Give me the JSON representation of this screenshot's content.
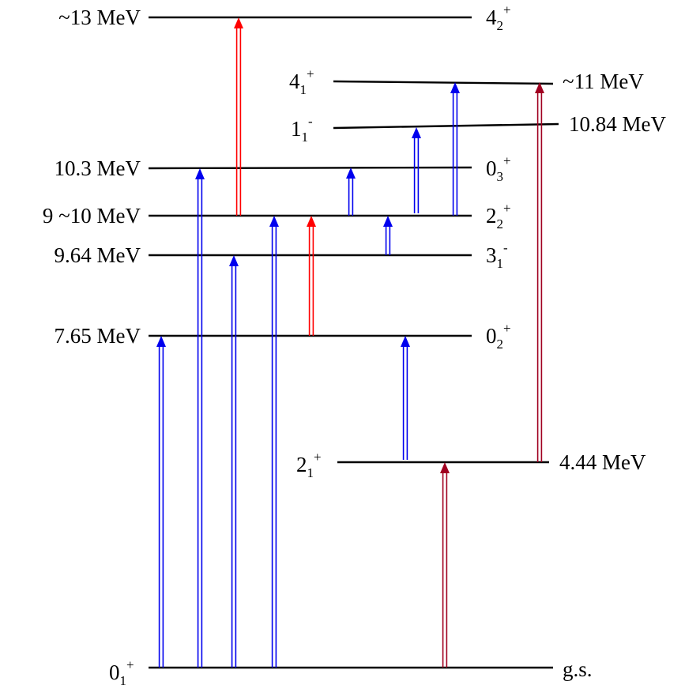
{
  "diagram": {
    "colors": {
      "line": "#000000",
      "blue": "#0000ee",
      "red": "#ff0000",
      "darkred": "#a00020"
    },
    "levels": [
      {
        "id": "gs",
        "energy": "g.s.",
        "spin": {
          "base": "0",
          "sub": "1",
          "sup": "+"
        }
      },
      {
        "id": "l444",
        "energy": "4.44 MeV",
        "spin": {
          "base": "2",
          "sub": "1",
          "sup": "+"
        }
      },
      {
        "id": "l765",
        "energy": "7.65 MeV",
        "spin": {
          "base": "0",
          "sub": "2",
          "sup": "+"
        }
      },
      {
        "id": "l964",
        "energy": "9.64 MeV",
        "spin": {
          "base": "3",
          "sub": "1",
          "sup": "-"
        }
      },
      {
        "id": "l910",
        "energy": "9 ~10 MeV",
        "spin": {
          "base": "2",
          "sub": "2",
          "sup": "+"
        }
      },
      {
        "id": "l103",
        "energy": "10.3 MeV",
        "spin": {
          "base": "0",
          "sub": "3",
          "sup": "+"
        }
      },
      {
        "id": "l1084",
        "energy": "10.84 MeV",
        "spin": {
          "base": "1",
          "sub": "1",
          "sup": "-"
        }
      },
      {
        "id": "l11",
        "energy": "~11 MeV",
        "spin": {
          "base": "4",
          "sub": "1",
          "sup": "+"
        }
      },
      {
        "id": "l13",
        "energy": "~13 MeV",
        "spin": {
          "base": "4",
          "sub": "2",
          "sup": "+"
        }
      }
    ]
  }
}
